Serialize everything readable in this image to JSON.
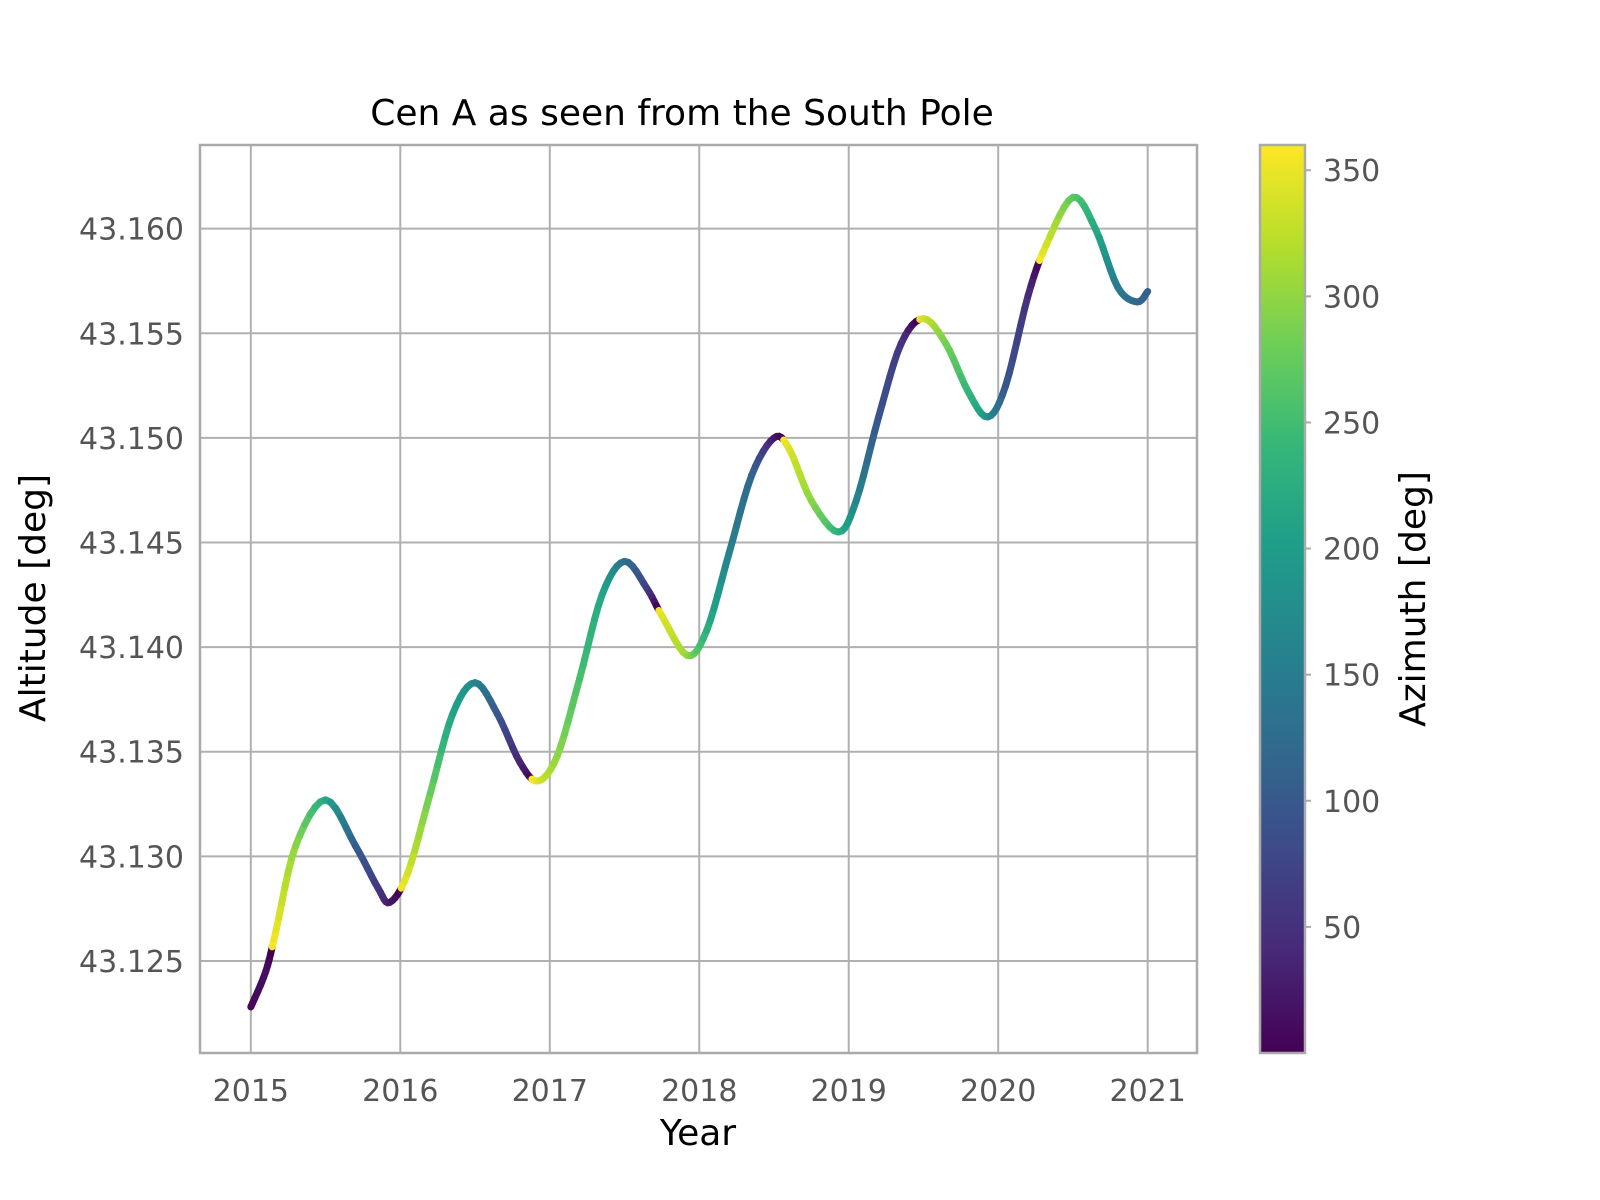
{
  "chart_data": {
    "type": "line",
    "title": "Cen A as seen from the South Pole",
    "xlabel": "Year",
    "ylabel": "Altitude [deg]",
    "colorbar_label": "Azimuth [deg]",
    "colormap": "viridis",
    "xlim": [
      2014.66,
      2021.33
    ],
    "ylim": [
      43.1206,
      43.164
    ],
    "x_ticks": [
      2015,
      2016,
      2017,
      2018,
      2019,
      2020,
      2021
    ],
    "x_tick_labels": [
      "2015",
      "2016",
      "2017",
      "2018",
      "2019",
      "2020",
      "2021"
    ],
    "y_ticks": [
      43.125,
      43.13,
      43.135,
      43.14,
      43.145,
      43.15,
      43.155,
      43.16
    ],
    "y_tick_labels": [
      "43.125",
      "43.130",
      "43.135",
      "43.140",
      "43.145",
      "43.150",
      "43.155",
      "43.160"
    ],
    "color_range": [
      0,
      360
    ],
    "color_ticks": [
      50,
      100,
      150,
      200,
      250,
      300,
      350
    ],
    "color_tick_labels": [
      "50",
      "100",
      "150",
      "200",
      "250",
      "300",
      "350"
    ],
    "grid": true,
    "series": [
      {
        "x": [
          2015.0,
          2015.1,
          2015.17,
          2015.3,
          2015.5,
          2015.7,
          2015.85,
          2015.93,
          2016.05,
          2016.2,
          2016.35,
          2016.5,
          2016.65,
          2016.8,
          2016.92,
          2017.05,
          2017.2,
          2017.35,
          2017.5,
          2017.65,
          2017.75,
          2017.92,
          2018.05,
          2018.2,
          2018.35,
          2018.5,
          2018.6,
          2018.75,
          2018.93,
          2019.05,
          2019.2,
          2019.35,
          2019.5,
          2019.65,
          2019.8,
          2019.93,
          2020.05,
          2020.2,
          2020.32,
          2020.5,
          2020.65,
          2020.8,
          2020.93,
          2021.0
        ],
        "y": [
          43.1228,
          43.1245,
          43.1265,
          43.1305,
          43.1327,
          43.1305,
          43.1285,
          43.1278,
          43.1292,
          43.133,
          43.1368,
          43.1383,
          43.1368,
          43.1345,
          43.1336,
          43.1348,
          43.1385,
          43.1425,
          43.1441,
          43.1428,
          43.1415,
          43.1396,
          43.1408,
          43.1445,
          43.1482,
          43.15,
          43.1495,
          43.147,
          43.1455,
          43.147,
          43.151,
          43.1545,
          43.1557,
          43.1545,
          43.1522,
          43.151,
          43.1525,
          43.1568,
          43.1592,
          43.1615,
          43.16,
          43.1572,
          43.1565,
          43.157
        ],
        "azimuth": [
          5,
          15,
          350,
          300,
          220,
          110,
          60,
          30,
          340,
          280,
          210,
          170,
          100,
          40,
          345,
          300,
          255,
          215,
          140,
          70,
          345,
          305,
          230,
          160,
          120,
          25,
          345,
          300,
          235,
          170,
          95,
          60,
          340,
          285,
          240,
          190,
          100,
          50,
          340,
          270,
          220,
          150,
          120,
          110
        ]
      }
    ]
  }
}
